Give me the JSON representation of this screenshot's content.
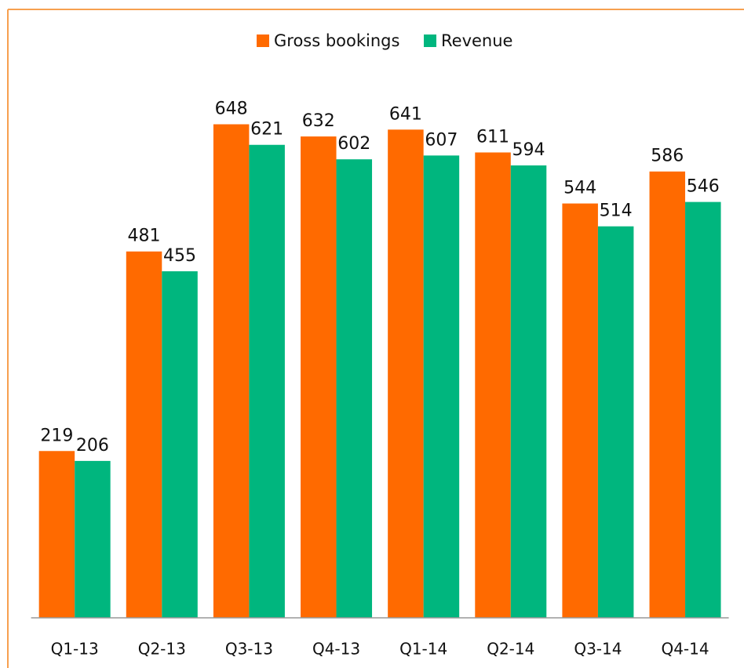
{
  "chart_data": {
    "type": "bar",
    "categories": [
      "Q1-13",
      "Q2-13",
      "Q3-13",
      "Q4-13",
      "Q1-14",
      "Q2-14",
      "Q3-14",
      "Q4-14"
    ],
    "series": [
      {
        "name": "Gross bookings",
        "color": "#ff6a00",
        "values": [
          219,
          481,
          648,
          632,
          641,
          611,
          544,
          586
        ]
      },
      {
        "name": "Revenue",
        "color": "#00b67e",
        "values": [
          206,
          455,
          621,
          602,
          607,
          594,
          514,
          546
        ]
      }
    ],
    "ylim": [
      0,
      700
    ],
    "legend": "top"
  }
}
